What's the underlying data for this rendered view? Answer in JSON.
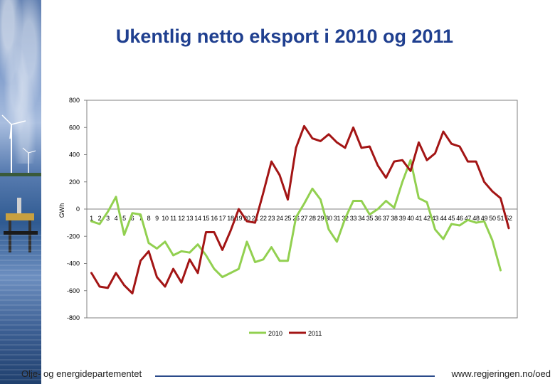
{
  "slide": {
    "title": "Ukentlig netto eksport i 2010 og 2011",
    "footer_left": "Olje- og energidepartementet",
    "footer_right": "www.regjeringen.no/oed"
  },
  "colors": {
    "title": "#1f3f8f",
    "series_2010": "#92d050",
    "series_2011": "#a31515",
    "footer_line": "#2a4a8a"
  },
  "chart_data": {
    "type": "line",
    "title": "",
    "xlabel": "",
    "ylabel": "GWh",
    "ylim": [
      -800,
      800
    ],
    "y_ticks": [
      800,
      600,
      400,
      200,
      0,
      -200,
      -400,
      -600,
      -800
    ],
    "grid": false,
    "legend_position": "bottom",
    "x": [
      1,
      2,
      3,
      4,
      5,
      6,
      7,
      8,
      9,
      10,
      11,
      12,
      13,
      14,
      15,
      16,
      17,
      18,
      19,
      20,
      21,
      22,
      23,
      24,
      25,
      26,
      27,
      28,
      29,
      30,
      31,
      32,
      33,
      34,
      35,
      36,
      37,
      38,
      39,
      40,
      41,
      42,
      43,
      44,
      45,
      46,
      47,
      48,
      49,
      50,
      51,
      52
    ],
    "series": [
      {
        "name": "2010",
        "values": [
          -90,
          -110,
          -20,
          90,
          -190,
          -30,
          -40,
          -250,
          -290,
          -240,
          -340,
          -310,
          -320,
          -260,
          -340,
          -440,
          -500,
          -470,
          -440,
          -240,
          -390,
          -370,
          -280,
          -380,
          -380,
          -60,
          40,
          150,
          70,
          -150,
          -240,
          -70,
          60,
          60,
          -40,
          0,
          60,
          10,
          200,
          360,
          80,
          50,
          -150,
          -220,
          -110,
          -120,
          -80,
          -100,
          -90,
          -230,
          -450,
          null
        ],
        "color": "#92d050"
      },
      {
        "name": "2011",
        "values": [
          -470,
          -570,
          -580,
          -470,
          -560,
          -620,
          -380,
          -310,
          -500,
          -570,
          -440,
          -540,
          -370,
          -470,
          -170,
          -170,
          -300,
          -160,
          0,
          -90,
          -100,
          120,
          350,
          250,
          70,
          450,
          610,
          520,
          500,
          550,
          490,
          450,
          600,
          450,
          460,
          320,
          230,
          350,
          360,
          280,
          490,
          360,
          410,
          570,
          480,
          460,
          350,
          350,
          200,
          130,
          80,
          -140
        ]
      }
    ]
  }
}
